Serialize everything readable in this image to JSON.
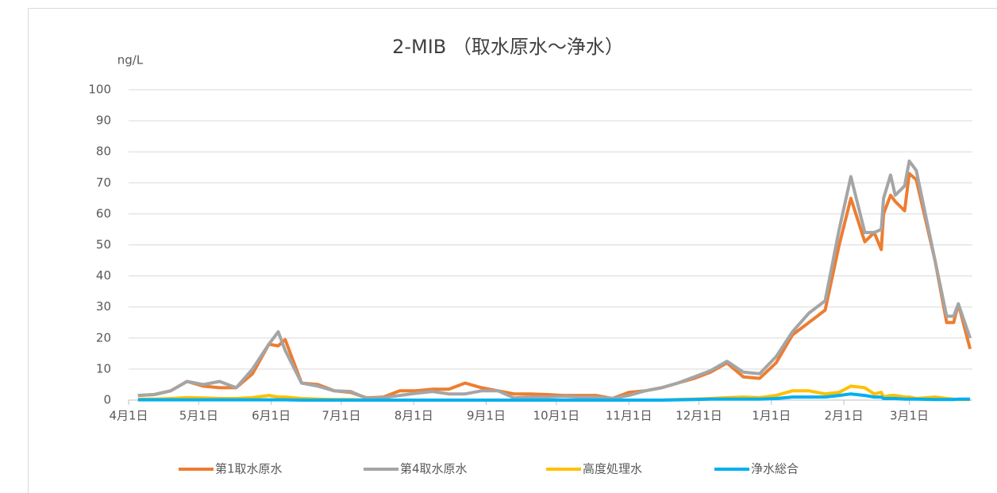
{
  "chart_data": {
    "type": "line",
    "title": "2-MIB （取水原水～浄水）",
    "y_label": "ng/L",
    "x": [
      4,
      11,
      18,
      25,
      32,
      39,
      46,
      53,
      60,
      64,
      67,
      74,
      81,
      88,
      95,
      102,
      109,
      116,
      123,
      130,
      137,
      144,
      151,
      158,
      165,
      172,
      179,
      186,
      193,
      200,
      207,
      214,
      221,
      228,
      235,
      242,
      249,
      256,
      263,
      270,
      277,
      284,
      291,
      298,
      304,
      309,
      315,
      319,
      322,
      323,
      326,
      328,
      332,
      334,
      337,
      345,
      350,
      353,
      355,
      360
    ],
    "xlim": [
      0,
      361
    ],
    "xticks": [
      {
        "value": 0,
        "label": "4月1日"
      },
      {
        "value": 30,
        "label": "5月1日"
      },
      {
        "value": 61,
        "label": "6月1日"
      },
      {
        "value": 91,
        "label": "7月1日"
      },
      {
        "value": 122,
        "label": "8月1日"
      },
      {
        "value": 153,
        "label": "9月1日"
      },
      {
        "value": 183,
        "label": "10月1日"
      },
      {
        "value": 214,
        "label": "11月1日"
      },
      {
        "value": 244,
        "label": "12月1日"
      },
      {
        "value": 275,
        "label": "1月1日"
      },
      {
        "value": 306,
        "label": "2月1日"
      },
      {
        "value": 334,
        "label": "3月1日"
      }
    ],
    "ylim": [
      0,
      100
    ],
    "yticks": [
      0,
      10,
      20,
      30,
      40,
      50,
      60,
      70,
      80,
      90,
      100
    ],
    "grid": true,
    "legend": "bottom",
    "series": [
      {
        "name": "第1取水原水",
        "color": "#ED7D31",
        "values": [
          1.5,
          1.8,
          3,
          6,
          4.5,
          4,
          4,
          8.5,
          18,
          17.5,
          19.5,
          5.5,
          5,
          3,
          2.5,
          0.7,
          1,
          3,
          3,
          3.5,
          3.5,
          5.5,
          4,
          3,
          2,
          2,
          1.8,
          1.5,
          1.5,
          1.5,
          0.5,
          2.5,
          3,
          4,
          5.5,
          7,
          9,
          12,
          7.5,
          7,
          12,
          21,
          25,
          29,
          50,
          65,
          51,
          54,
          48.5,
          60,
          66,
          64,
          61,
          73,
          71,
          45,
          25,
          25,
          31,
          16.5
        ]
      },
      {
        "name": "第4取水原水",
        "color": "#A5A5A5",
        "values": [
          1.5,
          1.8,
          3,
          6,
          5,
          6,
          4,
          10,
          18,
          22,
          16,
          5.5,
          4.5,
          3,
          2.8,
          0.5,
          0.8,
          1.5,
          2.2,
          2.8,
          2,
          2,
          3,
          3,
          0.7,
          1,
          1,
          1.2,
          1,
          1,
          0.5,
          1.5,
          3,
          4,
          5.5,
          7.5,
          9.5,
          12.5,
          9,
          8.5,
          14,
          22,
          28,
          32,
          55,
          72,
          54,
          54,
          55,
          65,
          72.5,
          66,
          69,
          77,
          74,
          45,
          27,
          27,
          31,
          20
        ]
      },
      {
        "name": "高度処理水",
        "color": "#FFC000",
        "values": [
          0.3,
          0.3,
          0.5,
          0.8,
          0.7,
          0.5,
          0.5,
          0.8,
          1.5,
          1,
          1,
          0.5,
          0.3,
          0.2,
          0.2,
          0,
          0,
          0,
          0,
          0,
          0,
          0,
          0,
          0,
          0,
          0,
          0,
          0,
          0,
          0,
          0,
          0,
          0,
          0,
          0.2,
          0.3,
          0.5,
          0.8,
          1,
          0.8,
          1.5,
          3,
          3,
          2,
          2.5,
          4.5,
          4,
          2,
          2.5,
          1,
          1.5,
          1.5,
          1,
          1,
          0.5,
          1,
          0.5,
          0.3,
          0.2,
          0.2
        ]
      },
      {
        "name": "浄水総合",
        "color": "#00B0F0",
        "values": [
          0.1,
          0.1,
          0.1,
          0.1,
          0.1,
          0.1,
          0.1,
          0.1,
          0.1,
          0.1,
          0.1,
          0,
          0,
          0,
          0,
          0,
          0,
          0,
          0,
          0,
          0,
          0,
          0,
          0,
          0,
          0,
          0,
          0,
          0,
          0,
          0,
          0,
          0,
          0,
          0.1,
          0.2,
          0.3,
          0.3,
          0.3,
          0.3,
          0.5,
          1,
          1,
          1,
          1.5,
          2,
          1.5,
          1,
          1,
          0.5,
          0.5,
          0.5,
          0.3,
          0.3,
          0.3,
          0.2,
          0.2,
          0.2,
          0.3,
          0.3
        ]
      }
    ]
  }
}
